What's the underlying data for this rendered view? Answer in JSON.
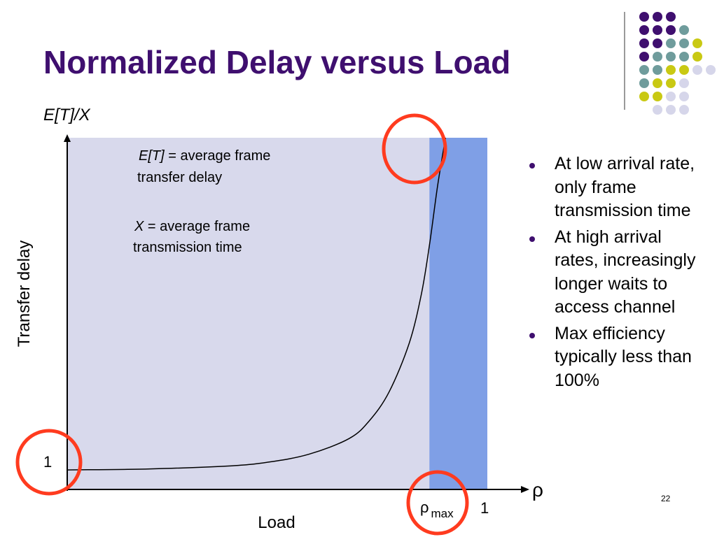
{
  "slide": {
    "title": "Normalized Delay versus Load",
    "number": "22"
  },
  "chart_data": {
    "type": "line",
    "y_axis_label_top": "E[T]/X",
    "y_axis_label_side": "Transfer delay",
    "x_axis_label": "Load",
    "x_axis_symbol": "ρ",
    "y_tick": "1",
    "x_ticks": {
      "rho_max_symbol": "ρ",
      "rho_max_subscript": "max",
      "one": "1"
    },
    "annotations": {
      "et_var": "E[T]",
      "et_rest_line1": " = average frame",
      "et_line2": "transfer delay",
      "x_var": "X",
      "x_rest_line1": " = average frame",
      "x_line2": "transmission time"
    },
    "series": [
      {
        "description_visible": false,
        "x": [
          0.0,
          0.2,
          0.4,
          0.5,
          0.6,
          0.7,
          0.75,
          0.8,
          0.85,
          0.88,
          0.9,
          0.92,
          0.94
        ],
        "y": [
          1.0,
          1.05,
          1.2,
          1.4,
          1.8,
          2.6,
          3.5,
          5.0,
          7.5,
          10.0,
          12.5,
          15.5,
          18.0
        ]
      }
    ],
    "rho_max": 0.9,
    "xlim": [
      0,
      1.08
    ],
    "ylim": [
      0,
      18
    ],
    "colors": {
      "plot_area": "#d8d9ec",
      "saturation_band": "#7f9fe6",
      "highlight_circle": "#ff3b1f"
    }
  },
  "bullets": [
    "At low arrival rate, only frame transmission time",
    "At high arrival rates, increasingly longer waits to access channel",
    "Max efficiency typically less than 100%"
  ],
  "colors": {
    "title": "#3f0f6f",
    "dot_purple": "#3f0f6f",
    "dot_teal": "#6f9c9c",
    "dot_yellow": "#c9c913",
    "dot_lavender": "#d6d6ea"
  }
}
